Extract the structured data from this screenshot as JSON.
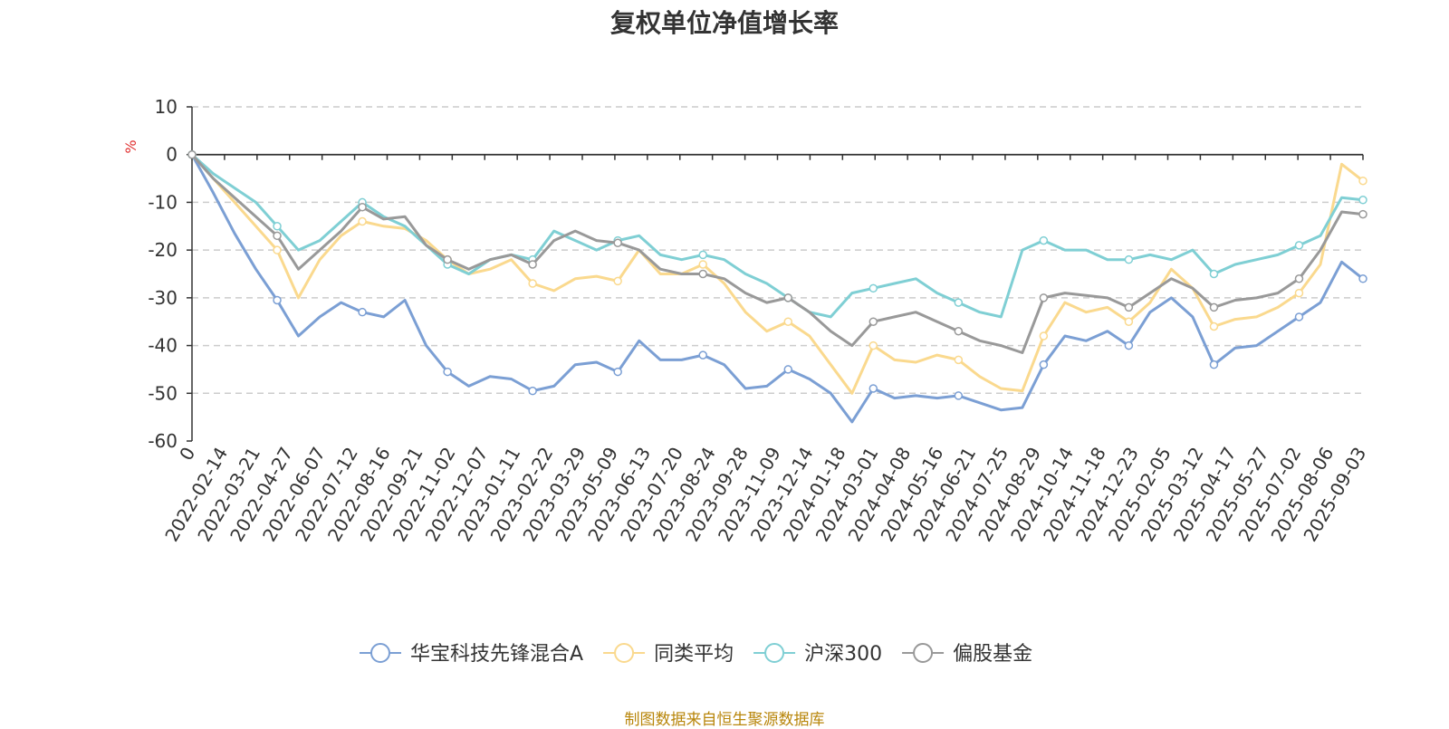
{
  "chart_data": {
    "type": "line",
    "title": "复权单位净值增长率",
    "ylabel": "%",
    "ylim": [
      -60,
      10
    ],
    "yticks": [
      10,
      0,
      -10,
      -20,
      -30,
      -40,
      -50,
      -60
    ],
    "x_ticks": [
      "0",
      "2022-02-14",
      "2022-03-21",
      "2022-04-27",
      "2022-06-07",
      "2022-07-12",
      "2022-08-16",
      "2022-09-21",
      "2022-11-02",
      "2022-12-07",
      "2023-01-11",
      "2023-02-22",
      "2023-03-29",
      "2023-05-09",
      "2023-06-13",
      "2023-07-20",
      "2023-08-24",
      "2023-09-28",
      "2023-11-09",
      "2023-12-14",
      "2024-01-18",
      "2024-03-01",
      "2024-04-08",
      "2024-05-16",
      "2024-06-21",
      "2024-07-25",
      "2024-08-29",
      "2024-10-14",
      "2024-11-18",
      "2024-12-23",
      "2025-02-05",
      "2025-03-12",
      "2025-04-17",
      "2025-05-27",
      "2025-07-02",
      "2025-08-06",
      "2025-09-03"
    ],
    "grid": true,
    "legend_position": "bottom",
    "series": [
      {
        "name": "华宝科技先锋混合A",
        "color": "#7b9fd4",
        "values": [
          0,
          -8,
          -16.5,
          -24,
          -30.5,
          -38,
          -34,
          -31,
          -33,
          -34,
          -30.5,
          -40,
          -45.5,
          -48.5,
          -46.5,
          -47,
          -49.5,
          -48.5,
          -44,
          -43.5,
          -45.5,
          -39,
          -43,
          -43,
          -42,
          -44,
          -49,
          -48.5,
          -45,
          -47,
          -50,
          -56,
          -49,
          -51,
          -50.5,
          -51,
          -50.5,
          -52,
          -53.5,
          -53,
          -44,
          -38,
          -39,
          -37,
          -40,
          -33,
          -30,
          -34,
          -44,
          -40.5,
          -40,
          -37,
          -34,
          -31,
          -22.5,
          -26
        ]
      },
      {
        "name": "同类平均",
        "color": "#fad98e",
        "values": [
          0,
          -5,
          -10,
          -15,
          -20,
          -30,
          -22,
          -17,
          -14,
          -15,
          -15.5,
          -18,
          -22,
          -25,
          -24,
          -22,
          -27,
          -28.5,
          -26,
          -25.5,
          -26.5,
          -20,
          -25,
          -25,
          -23,
          -27,
          -33,
          -37,
          -35,
          -38,
          -44,
          -50,
          -40,
          -43,
          -43.5,
          -42,
          -43,
          -46.5,
          -49,
          -49.5,
          -38,
          -31,
          -33,
          -32,
          -35,
          -31,
          -24,
          -28,
          -36,
          -34.5,
          -34,
          -32,
          -29,
          -23,
          -2,
          -5.5
        ]
      },
      {
        "name": "沪深300",
        "color": "#7fcfd4",
        "values": [
          0,
          -4,
          -7,
          -10,
          -15,
          -20,
          -18,
          -14,
          -10,
          -13,
          -15,
          -19,
          -23,
          -25,
          -22,
          -21,
          -22,
          -16,
          -18,
          -20,
          -18,
          -17,
          -21,
          -22,
          -21,
          -22,
          -25,
          -27,
          -30,
          -33,
          -34,
          -29,
          -28,
          -27,
          -26,
          -29,
          -31,
          -33,
          -34,
          -20,
          -18,
          -20,
          -20,
          -22,
          -22,
          -21,
          -22,
          -20,
          -25,
          -23,
          -22,
          -21,
          -19,
          -17,
          -9,
          -9.5
        ]
      },
      {
        "name": "偏股基金",
        "color": "#999999",
        "values": [
          0,
          -5,
          -9,
          -13,
          -17,
          -24,
          -20,
          -16,
          -11,
          -13.5,
          -13,
          -19,
          -22,
          -24,
          -22,
          -21,
          -23,
          -18,
          -16,
          -18,
          -18.5,
          -20,
          -24,
          -25,
          -25,
          -26,
          -29,
          -31,
          -30,
          -33,
          -37,
          -40,
          -35,
          -34,
          -33,
          -35,
          -37,
          -39,
          -40,
          -41.5,
          -30,
          -29,
          -29.5,
          -30,
          -32,
          -29,
          -26,
          -28,
          -32,
          -30.5,
          -30,
          -29,
          -26,
          -20,
          -12,
          -12.5
        ]
      }
    ]
  },
  "source_note": "制图数据来自恒生聚源数据库"
}
